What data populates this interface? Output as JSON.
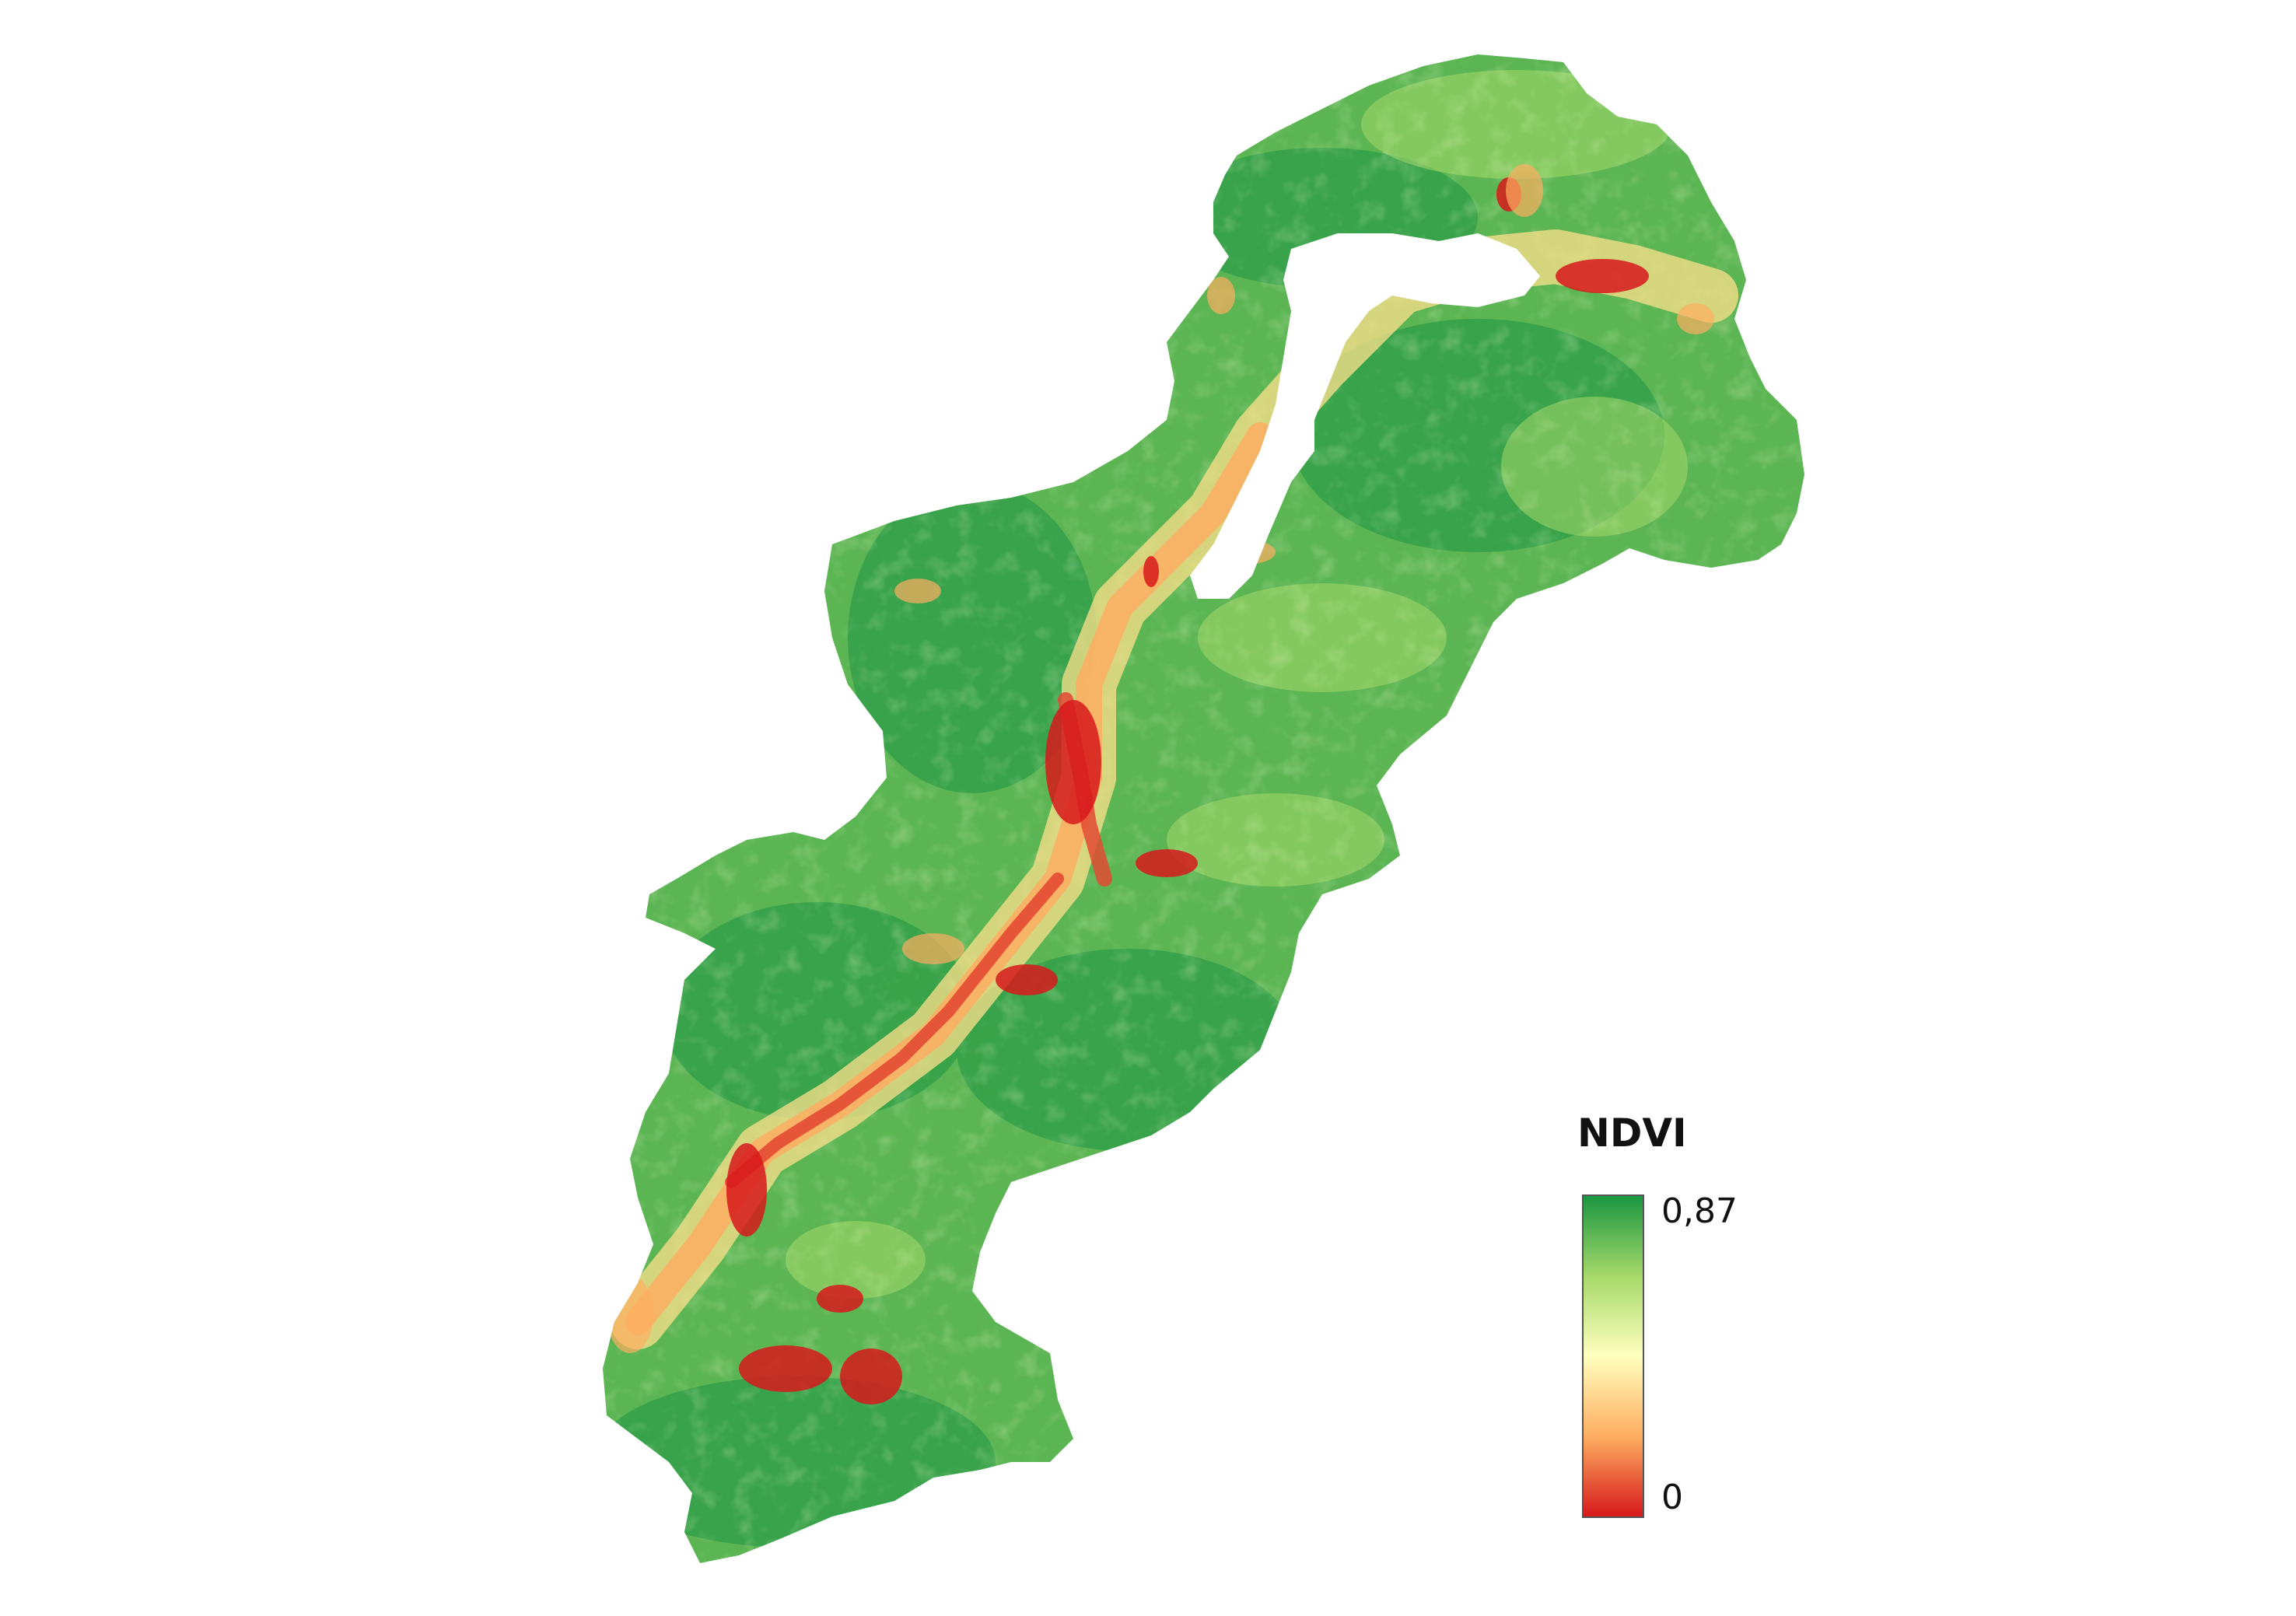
{
  "legend": {
    "title": "NDVI",
    "max_label": "0,87",
    "min_label": "0",
    "ramp": {
      "colors": [
        "#1a9641",
        "#a6d96a",
        "#ffffbf",
        "#fdae61",
        "#d7191c"
      ],
      "values": [
        0.87,
        0.6,
        0.44,
        0.25,
        0
      ]
    }
  }
}
